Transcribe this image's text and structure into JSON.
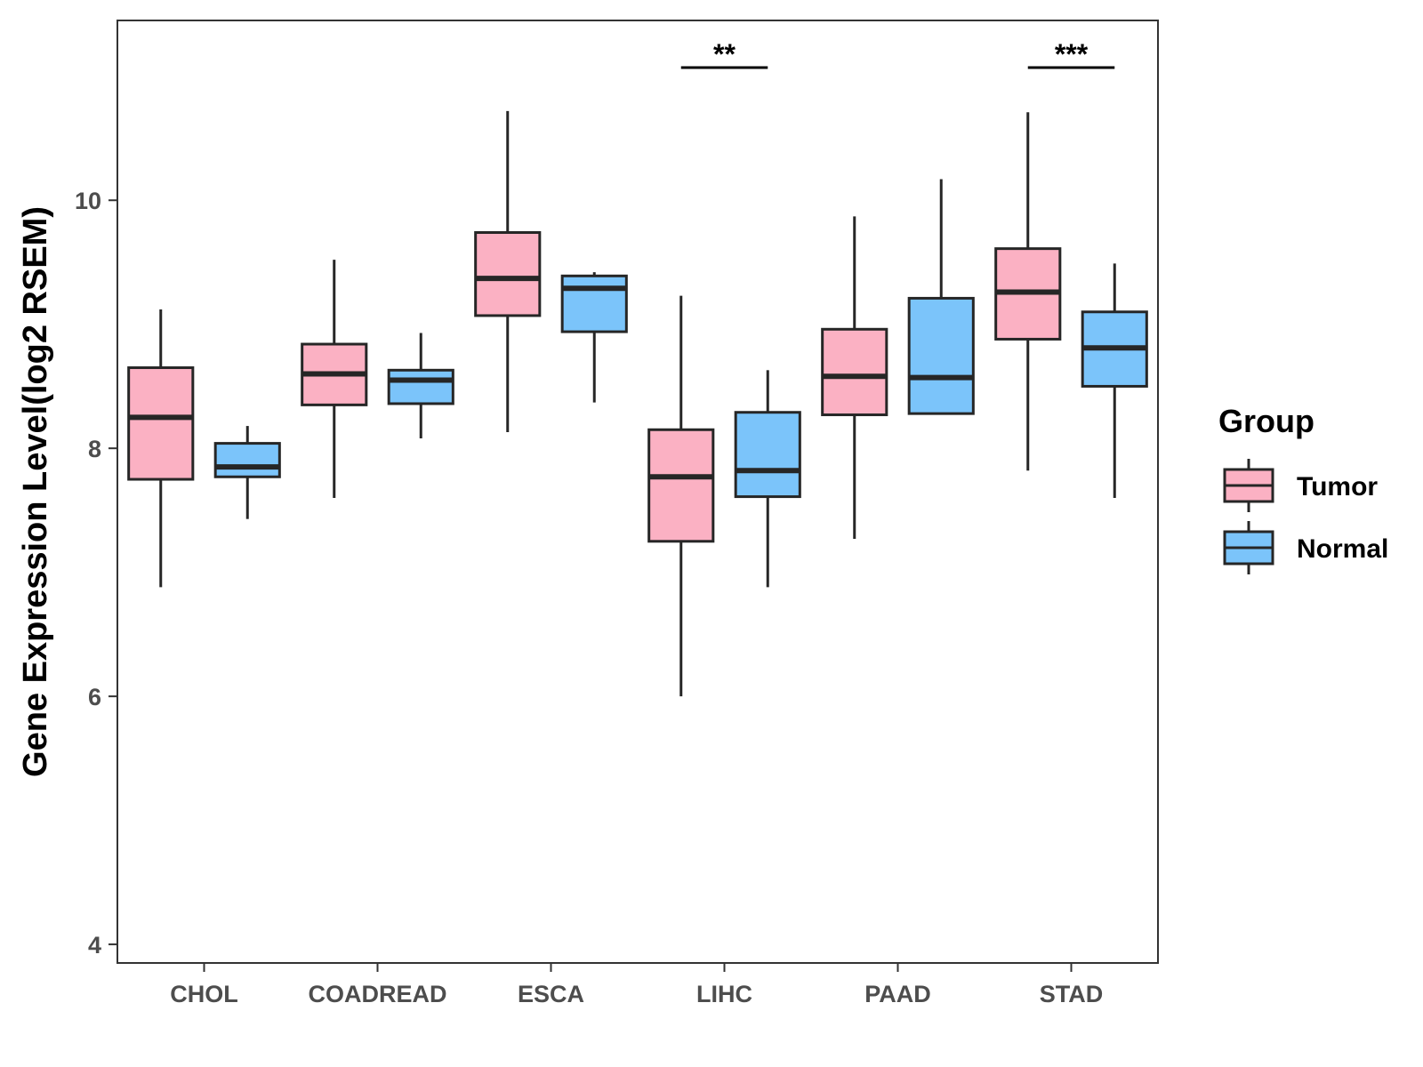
{
  "chart_data": {
    "type": "box",
    "title": "",
    "xlabel": "",
    "ylabel": "Gene Expression Level(log2 RSEM)",
    "ylim": [
      3.85,
      11.45
    ],
    "yticks": [
      4,
      6,
      8,
      10
    ],
    "categories": [
      "CHOL",
      "COADREAD",
      "ESCA",
      "LIHC",
      "PAAD",
      "STAD"
    ],
    "legend": {
      "title": "Group",
      "position": "right"
    },
    "series": [
      {
        "name": "Tumor",
        "color": "#FBB1C3",
        "boxes": [
          {
            "min": 6.88,
            "q1": 7.75,
            "median": 8.25,
            "q3": 8.65,
            "max": 9.12
          },
          {
            "min": 7.6,
            "q1": 8.35,
            "median": 8.6,
            "q3": 8.84,
            "max": 9.52
          },
          {
            "min": 8.13,
            "q1": 9.07,
            "median": 9.37,
            "q3": 9.74,
            "max": 10.72
          },
          {
            "min": 6.0,
            "q1": 7.25,
            "median": 7.77,
            "q3": 8.15,
            "max": 9.23
          },
          {
            "min": 7.27,
            "q1": 8.27,
            "median": 8.58,
            "q3": 8.96,
            "max": 9.87
          },
          {
            "min": 7.82,
            "q1": 8.88,
            "median": 9.26,
            "q3": 9.61,
            "max": 10.71
          }
        ]
      },
      {
        "name": "Normal",
        "color": "#7BC4FA",
        "boxes": [
          {
            "min": 7.43,
            "q1": 7.77,
            "median": 7.85,
            "q3": 8.04,
            "max": 8.18
          },
          {
            "min": 8.08,
            "q1": 8.36,
            "median": 8.55,
            "q3": 8.63,
            "max": 8.93
          },
          {
            "min": 8.37,
            "q1": 8.94,
            "median": 9.29,
            "q3": 9.39,
            "max": 9.42
          },
          {
            "min": 6.88,
            "q1": 7.61,
            "median": 7.82,
            "q3": 8.29,
            "max": 8.63
          },
          {
            "min": 8.28,
            "q1": 8.28,
            "median": 8.57,
            "q3": 9.21,
            "max": 10.17
          },
          {
            "min": 7.6,
            "q1": 8.5,
            "median": 8.81,
            "q3": 9.1,
            "max": 9.49
          }
        ]
      }
    ],
    "annotations": [
      {
        "category": "LIHC",
        "label": "**",
        "y": 11.07
      },
      {
        "category": "STAD",
        "label": "***",
        "y": 11.07
      }
    ],
    "grid": false
  }
}
